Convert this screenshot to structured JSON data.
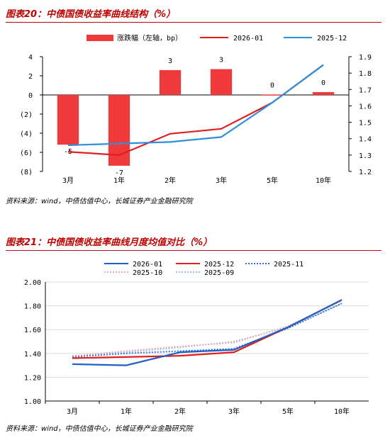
{
  "figure1": {
    "title": "图表20：中债国债收益率曲线结构（%）",
    "source": "资料来源：wind，中债估值中心，长城证券产业金融研究院"
  },
  "figure2": {
    "title": "图表21：中债国债收益率曲线月度均值对比（%）",
    "source": "资料来源：wind，中债估值中心，长城证券产业金融研究院"
  },
  "chart_data": [
    {
      "type": "bar",
      "categories": [
        "3月",
        "1年",
        "2年",
        "3年",
        "5年",
        "10年"
      ],
      "series": [
        {
          "name": "涨跌幅（左轴，bp）",
          "type": "bar",
          "axis": "left",
          "color": "#f0393b",
          "values": [
            -5,
            -7,
            3,
            3,
            0,
            0
          ],
          "labels": [
            "-5",
            "-7",
            "3",
            "3",
            "0",
            "0"
          ],
          "bar_values": [
            -5.2,
            -7.4,
            2.6,
            2.7,
            0.05,
            0.3
          ]
        },
        {
          "name": "2026-01",
          "type": "line",
          "axis": "right",
          "color": "#e01f1f",
          "values": [
            1.32,
            1.3,
            1.43,
            1.46,
            1.62,
            1.85
          ]
        },
        {
          "name": "2025-12",
          "type": "line",
          "axis": "right",
          "color": "#2f8fd8",
          "values": [
            1.36,
            1.37,
            1.38,
            1.41,
            1.62,
            1.85
          ]
        }
      ],
      "left_axis": {
        "min": -8,
        "max": 4,
        "ticks": [
          4,
          2,
          0,
          -2,
          -4,
          -6,
          -8
        ],
        "tick_labels": [
          "4",
          "2",
          "0",
          "(2)",
          "(4)",
          "(6)",
          "(8)"
        ]
      },
      "right_axis": {
        "min": 1.2,
        "max": 1.9,
        "ticks": [
          1.9,
          1.8,
          1.7,
          1.6,
          1.5,
          1.4,
          1.3,
          1.2
        ],
        "tick_labels": [
          "1.9",
          "1.8",
          "1.7",
          "1.6",
          "1.5",
          "1.4",
          "1.3",
          "1.2"
        ]
      },
      "legend_position": "top",
      "grid": false
    },
    {
      "type": "line",
      "categories": [
        "3月",
        "1年",
        "2年",
        "3年",
        "5年",
        "10年"
      ],
      "series": [
        {
          "name": "2026-01",
          "color": "#1f5fc2",
          "style": "solid",
          "values": [
            1.31,
            1.3,
            1.41,
            1.43,
            1.62,
            1.85
          ]
        },
        {
          "name": "2025-12",
          "color": "#e01f1f",
          "style": "solid",
          "values": [
            1.36,
            1.37,
            1.38,
            1.41,
            1.62,
            1.85
          ]
        },
        {
          "name": "2025-11",
          "color": "#2f6fd0",
          "style": "dotted",
          "values": [
            1.37,
            1.4,
            1.42,
            1.44,
            1.61,
            1.82
          ]
        },
        {
          "name": "2025-10",
          "color": "#f4a6a6",
          "style": "dotted",
          "values": [
            1.38,
            1.42,
            1.46,
            1.49,
            1.63,
            1.84
          ]
        },
        {
          "name": "2025-09",
          "color": "#8fc0ee",
          "style": "dotted",
          "values": [
            1.38,
            1.41,
            1.45,
            1.5,
            1.62,
            1.82
          ]
        }
      ],
      "y_axis": {
        "min": 1.0,
        "max": 2.0,
        "ticks": [
          2.0,
          1.8,
          1.6,
          1.4,
          1.2,
          1.0
        ],
        "tick_labels": [
          "2.00",
          "1.80",
          "1.60",
          "1.40",
          "1.20",
          "1.00"
        ]
      },
      "legend_position": "top",
      "grid": true
    }
  ]
}
